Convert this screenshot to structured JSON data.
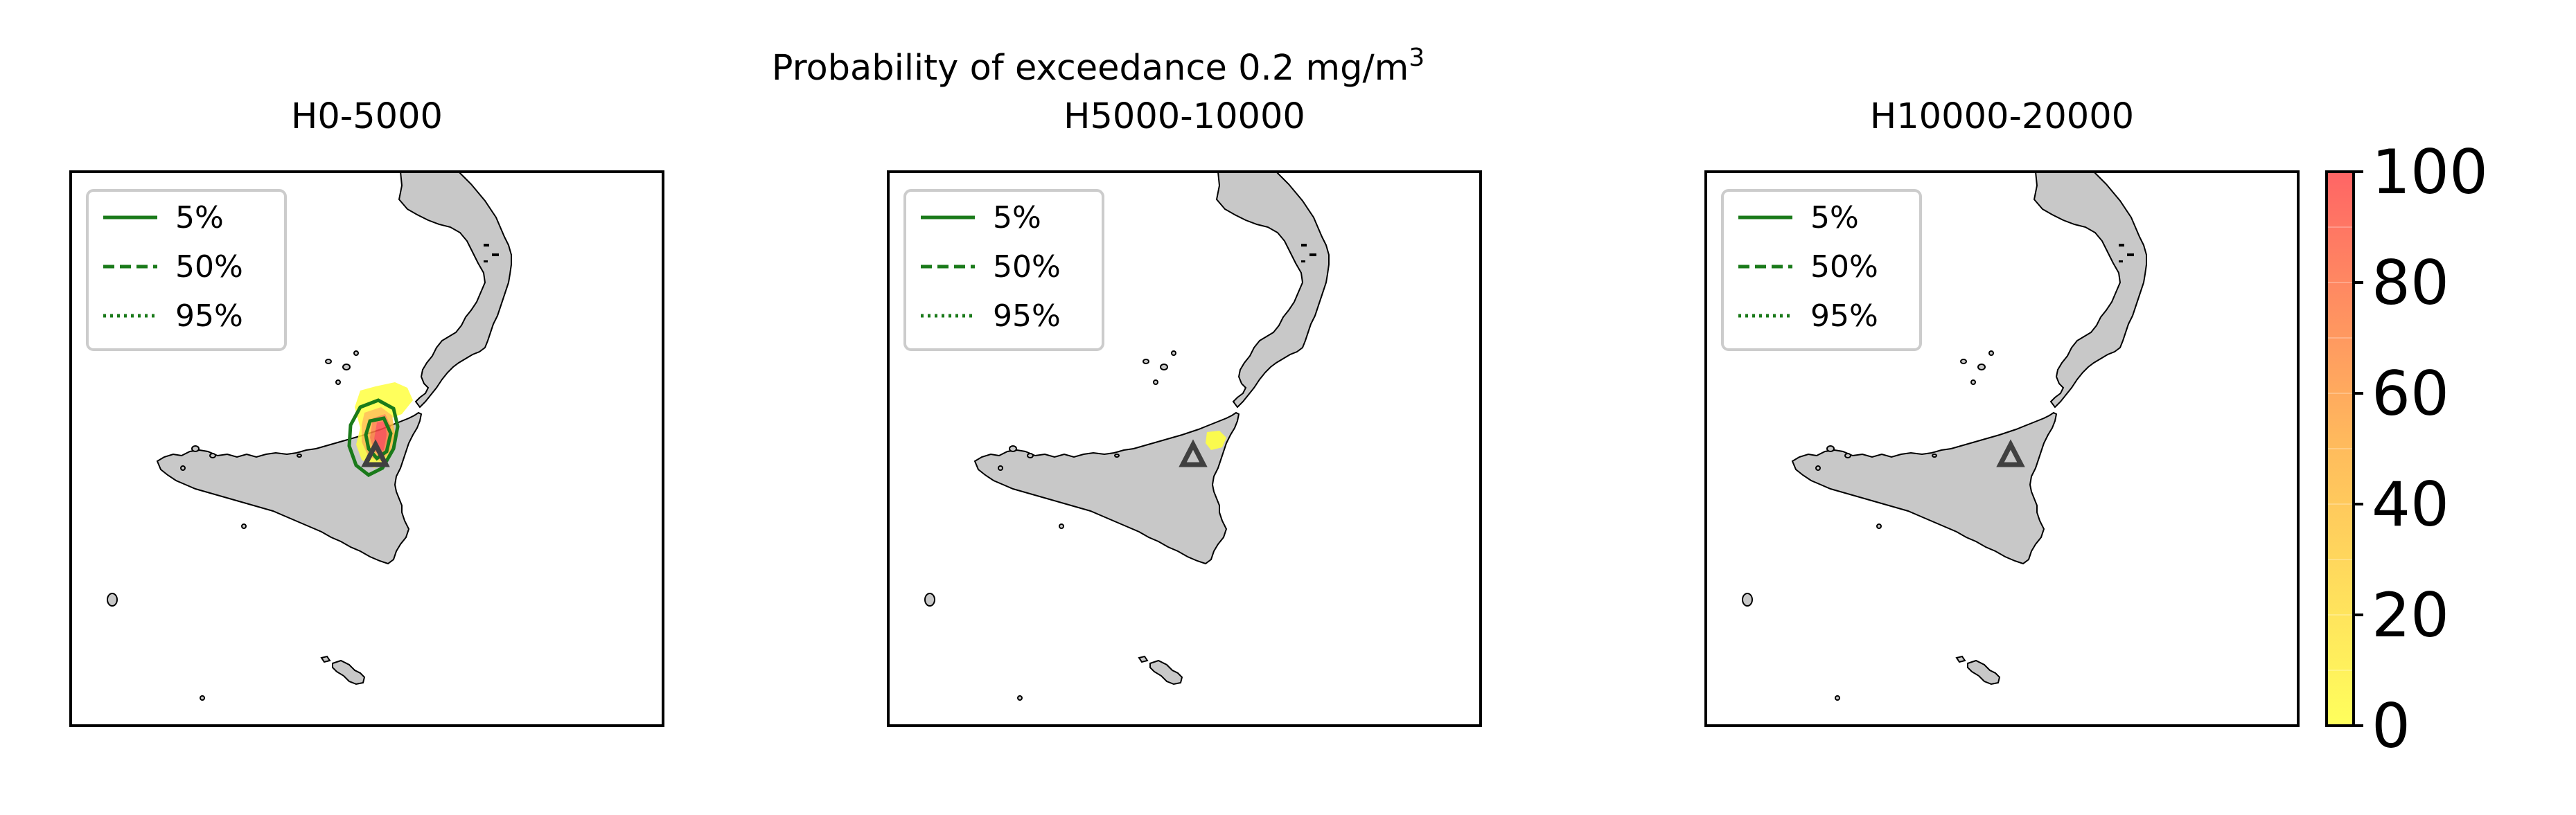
{
  "title": "Probability of exceedance 0.2 mg/m",
  "title_superscript": "3",
  "panels": [
    {
      "title": "H0-5000",
      "legend": [
        {
          "label": "5%",
          "style": "solid"
        },
        {
          "label": "50%",
          "style": "dashed"
        },
        {
          "label": "95%",
          "style": "dotted"
        }
      ],
      "volcano_marker": "triangle-icon",
      "probability_shown": true,
      "contours_shown": true
    },
    {
      "title": "H5000-10000",
      "legend": [
        {
          "label": "5%",
          "style": "solid"
        },
        {
          "label": "50%",
          "style": "dashed"
        },
        {
          "label": "95%",
          "style": "dotted"
        }
      ],
      "volcano_marker": "triangle-icon",
      "probability_shown": true,
      "contours_shown": false
    },
    {
      "title": "H10000-20000",
      "legend": [
        {
          "label": "5%",
          "style": "solid"
        },
        {
          "label": "50%",
          "style": "dashed"
        },
        {
          "label": "95%",
          "style": "dotted"
        }
      ],
      "volcano_marker": "triangle-icon",
      "probability_shown": false,
      "contours_shown": false
    }
  ],
  "colorbar": {
    "ticks": [
      "0",
      "20",
      "40",
      "60",
      "80",
      "100"
    ],
    "min": 0,
    "max": 100,
    "color_low": "#ffff40",
    "color_high": "#ff4a4a"
  },
  "colors": {
    "land": "#c8c8c8",
    "coastline": "#000000",
    "contour": "#1a7a1a",
    "volcano": "#404040"
  }
}
